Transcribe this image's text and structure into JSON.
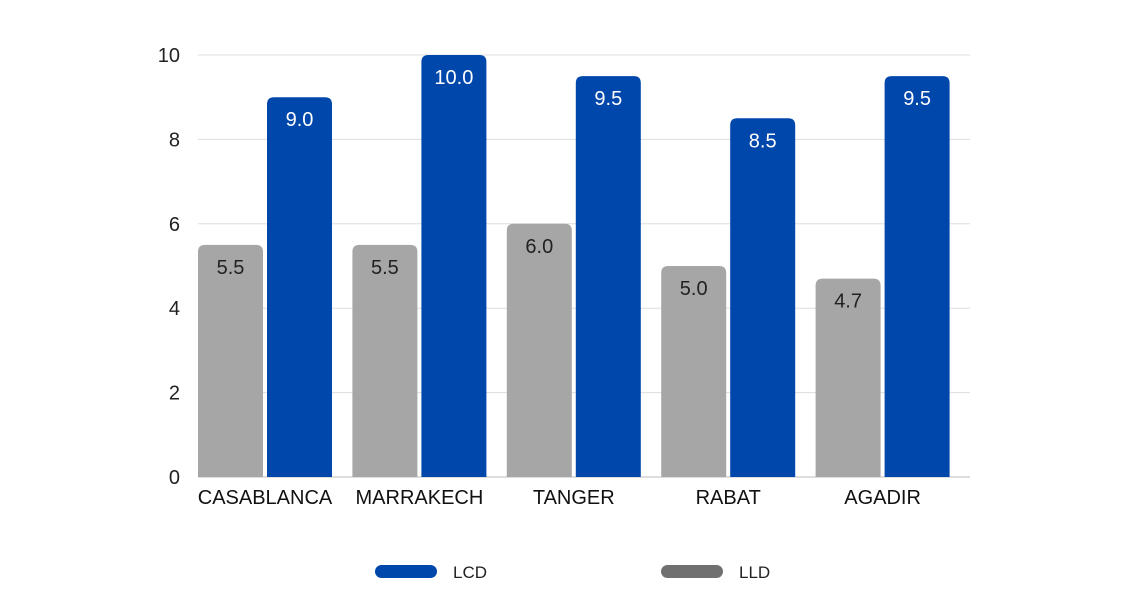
{
  "chart_data": {
    "type": "bar",
    "categories": [
      "CASABLANCA",
      "MARRAKECH",
      "TANGER",
      "RABAT",
      "AGADIR"
    ],
    "series": [
      {
        "name": "LLD",
        "color": "#a6a6a6",
        "label_color": "#222222",
        "values": [
          5.5,
          5.5,
          6.0,
          5.0,
          4.7
        ]
      },
      {
        "name": "LCD",
        "color": "#0047ab",
        "label_color": "#ffffff",
        "values": [
          9.0,
          10.0,
          9.5,
          8.5,
          9.5
        ]
      }
    ],
    "data_labels": [
      [
        "5.5",
        "5.5",
        "6.0",
        "5.0",
        "4.7"
      ],
      [
        "9.0",
        "10.0",
        "9.5",
        "8.5",
        "9.5"
      ]
    ],
    "y_ticks": [
      "0",
      "2",
      "4",
      "6",
      "8",
      "10"
    ],
    "ylim": [
      0,
      10
    ],
    "grid": true,
    "legend": {
      "placement": "bottom",
      "items": [
        {
          "label": "LCD",
          "color": "#0047ab"
        },
        {
          "label": "LLD",
          "color": "#707070"
        }
      ]
    }
  }
}
